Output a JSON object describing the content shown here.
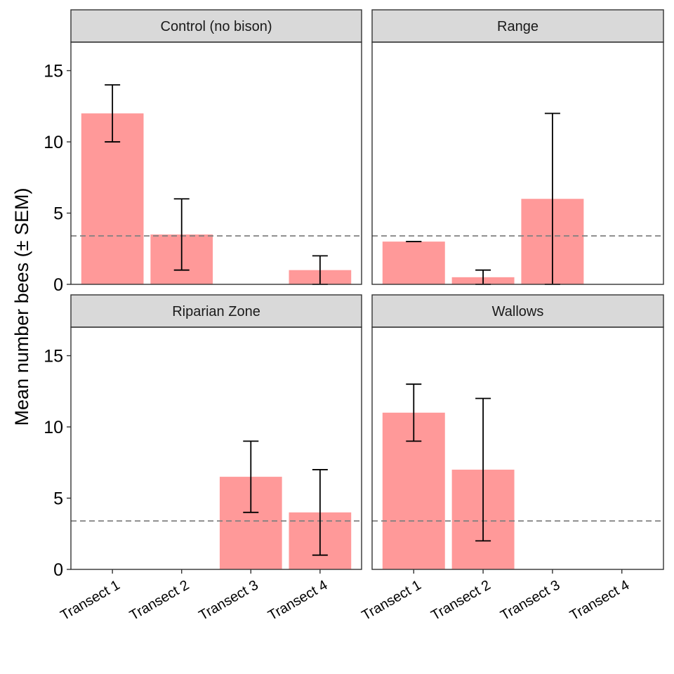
{
  "chart_data": {
    "type": "bar",
    "layout": "facet-grid 2x2",
    "ylabel": "Mean number bees (± SEM)",
    "xlabel": "",
    "categories": [
      "Transect 1",
      "Transect 2",
      "Transect 3",
      "Transect 4"
    ],
    "ylim": [
      0,
      17
    ],
    "yticks": [
      0,
      5,
      10,
      15
    ],
    "reference_line": {
      "value": 3.4,
      "style": "dashed",
      "color": "#808080"
    },
    "bar_color": "#ff9999",
    "grid": false,
    "panels": [
      {
        "title": "Control (no bison)",
        "values": [
          12,
          3.5,
          0,
          1
        ],
        "error_low": [
          10,
          1,
          null,
          0
        ],
        "error_high": [
          14,
          6,
          null,
          2
        ]
      },
      {
        "title": "Range",
        "values": [
          3,
          0.5,
          6,
          0
        ],
        "error_low": [
          3,
          0,
          0,
          null
        ],
        "error_high": [
          3,
          1,
          12,
          null
        ]
      },
      {
        "title": "Riparian Zone",
        "values": [
          0,
          0,
          6.5,
          4
        ],
        "error_low": [
          null,
          null,
          4,
          1
        ],
        "error_high": [
          null,
          null,
          9,
          7
        ]
      },
      {
        "title": "Wallows",
        "values": [
          11,
          7,
          0,
          0
        ],
        "error_low": [
          9,
          2,
          null,
          null
        ],
        "error_high": [
          13,
          12,
          null,
          null
        ]
      }
    ]
  }
}
